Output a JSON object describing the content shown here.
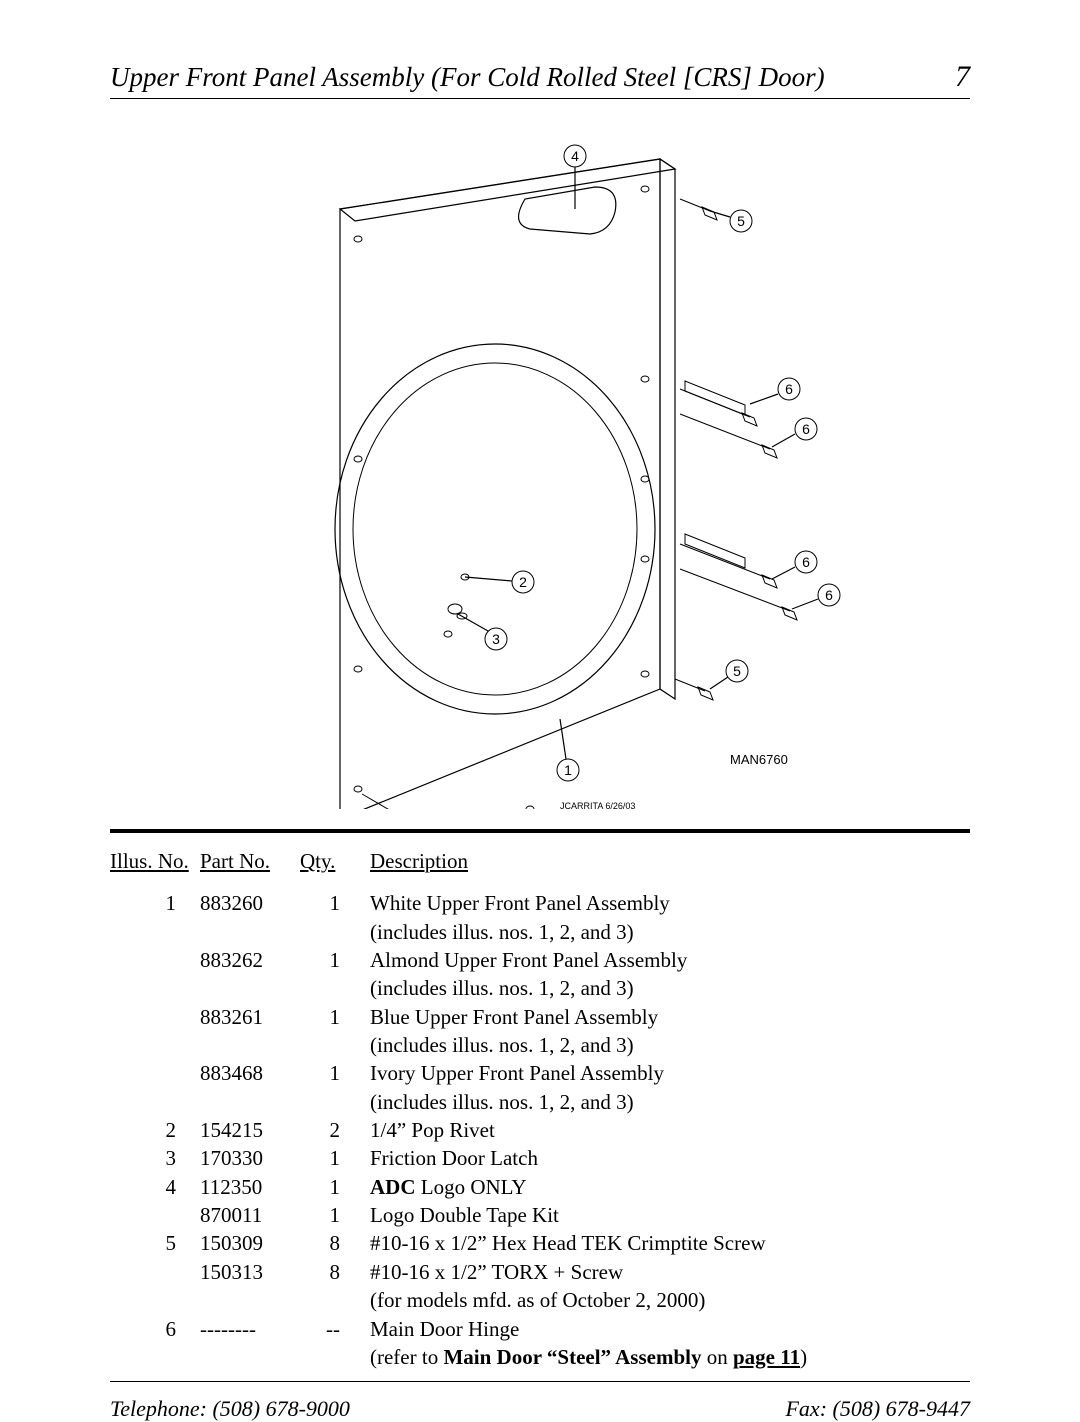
{
  "header": {
    "title": "Upper Front Panel Assembly (For Cold Rolled Steel [CRS] Door)",
    "page_no": "7"
  },
  "diagram": {
    "ref": "MAN6760",
    "credit": "JCARRITA 6/26/03",
    "callouts": [
      "1",
      "2",
      "3",
      "4",
      "5",
      "6"
    ],
    "stroke": "#000000",
    "circle_r": 11,
    "font_family": "Arial, sans-serif",
    "callout_fontsize": 14,
    "ref_fontsize": 13,
    "credit_fontsize": 9
  },
  "table": {
    "headers": {
      "illus": "Illus. No.",
      "part": "Part No.",
      "qty": "Qty.",
      "desc": "Description"
    },
    "rows": [
      {
        "illus": "1",
        "part": "883260",
        "qty": "1",
        "desc": "White Upper Front Panel Assembly",
        "desc2": "(includes illus. nos. 1, 2, and 3)"
      },
      {
        "illus": "",
        "part": "883262",
        "qty": "1",
        "desc": "Almond Upper Front Panel Assembly",
        "desc2": "(includes illus. nos. 1, 2, and 3)"
      },
      {
        "illus": "",
        "part": "883261",
        "qty": "1",
        "desc": "Blue Upper Front Panel Assembly",
        "desc2": "(includes illus. nos. 1, 2, and 3)"
      },
      {
        "illus": "",
        "part": "883468",
        "qty": "1",
        "desc": "Ivory Upper Front Panel Assembly",
        "desc2": "(includes illus. nos. 1, 2, and 3)"
      },
      {
        "illus": "2",
        "part": "154215",
        "qty": "2",
        "desc": "1/4” Pop Rivet"
      },
      {
        "illus": "3",
        "part": "170330",
        "qty": "1",
        "desc": "Friction Door Latch"
      },
      {
        "illus": "4",
        "part": "112350",
        "qty": "1",
        "desc_html": "<b>ADC</b> Logo ONLY"
      },
      {
        "illus": "",
        "part": "870011",
        "qty": "1",
        "desc": "Logo Double Tape Kit"
      },
      {
        "illus": "5",
        "part": "150309",
        "qty": "8",
        "desc": "#10-16 x 1/2” Hex Head TEK Crimptite Screw"
      },
      {
        "illus": "",
        "part": "150313",
        "qty": "8",
        "desc": "#10-16 x 1/2” TORX + Screw",
        "desc2": "(for models mfd. as of October 2, 2000)"
      },
      {
        "illus": "6",
        "part": "--------",
        "qty": "--",
        "desc": "Main Door Hinge",
        "desc2_html": "(refer to <b>Main Door “Steel” Assembly</b> on <b><span class='u'>page 11</span></b>)"
      }
    ]
  },
  "footer": {
    "phone": "Telephone: (508) 678-9000",
    "fax": "Fax: (508) 678-9447"
  },
  "style": {
    "page_bg": "#ffffff",
    "text_color": "#000000",
    "header_fontsize": 27,
    "pageno_fontsize": 30,
    "table_fontsize": 21,
    "footer_fontsize": 22
  }
}
